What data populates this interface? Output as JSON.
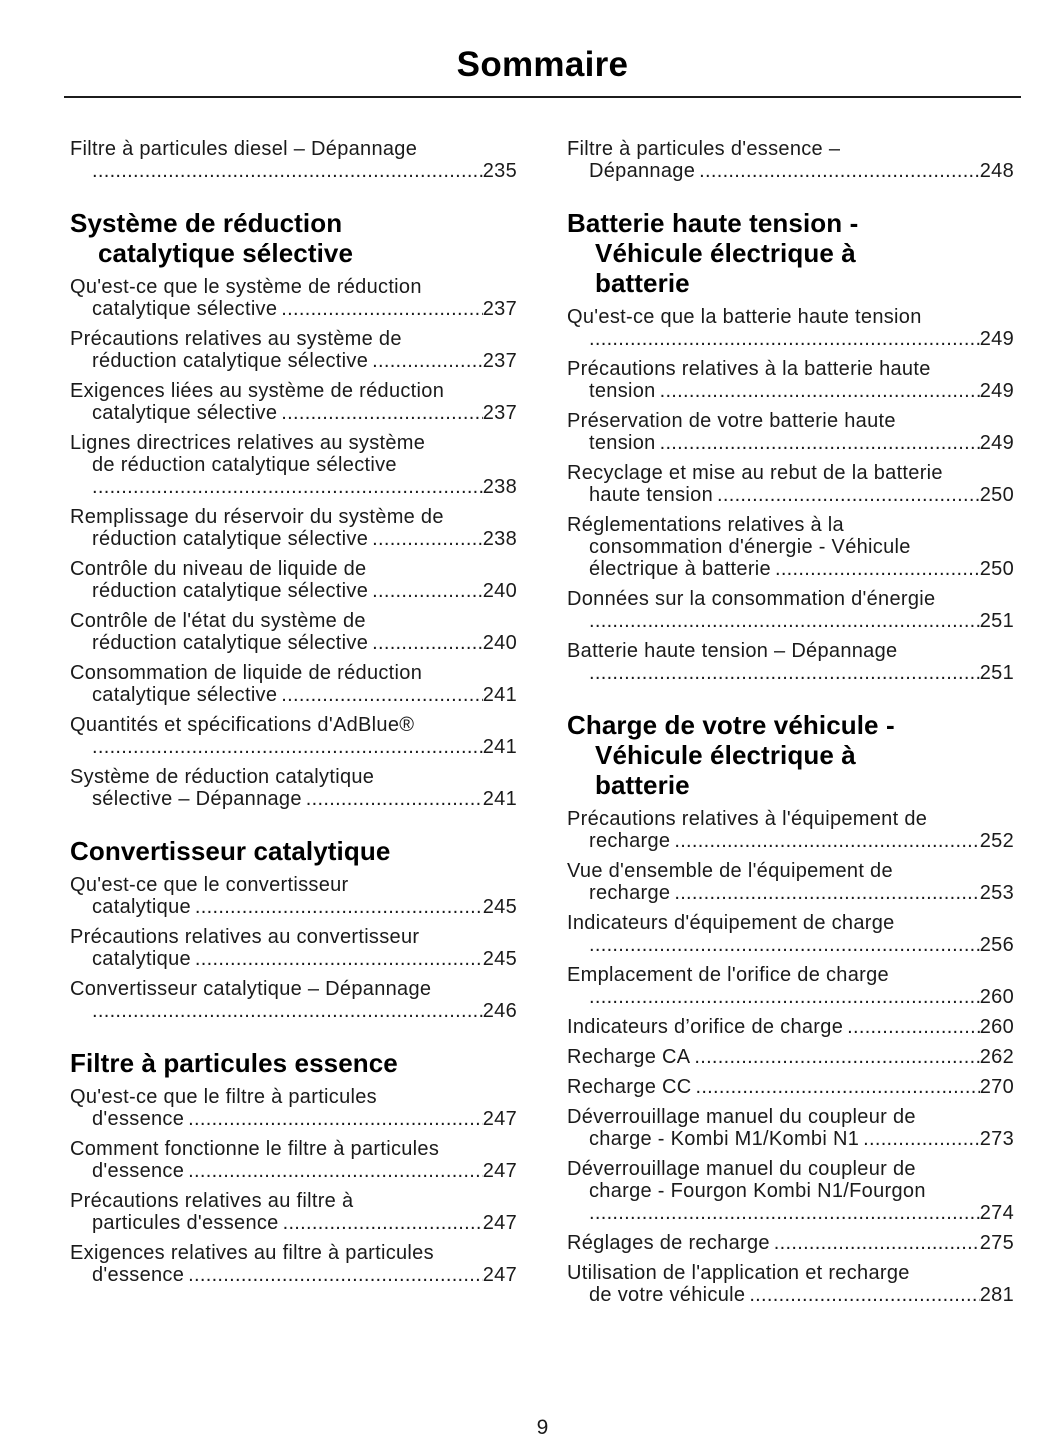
{
  "title": "Sommaire",
  "footer": {
    "page_number": "9"
  },
  "colors": {
    "ink": "#1a1a1a",
    "heading_ink": "#000000"
  },
  "columns": {
    "left": [
      {
        "heading": null,
        "entries": [
          {
            "lines": [
              "Filtre à particules diesel – Dépannage",
              ""
            ],
            "page": "235"
          }
        ]
      },
      {
        "heading": {
          "lines": [
            "Système de réduction",
            "catalytique sélective"
          ]
        },
        "entries": [
          {
            "lines": [
              "Qu'est-ce que le système de réduction",
              "catalytique sélective"
            ],
            "page": "237"
          },
          {
            "lines": [
              "Précautions relatives au système de",
              "réduction catalytique sélective"
            ],
            "page": "237"
          },
          {
            "lines": [
              "Exigences liées au système de réduction",
              "catalytique sélective"
            ],
            "page": "237"
          },
          {
            "lines": [
              "Lignes directrices relatives au système",
              "de réduction catalytique sélective",
              ""
            ],
            "page": "238"
          },
          {
            "lines": [
              "Remplissage du réservoir du système de",
              "réduction catalytique sélective"
            ],
            "page": "238"
          },
          {
            "lines": [
              "Contrôle du niveau de liquide de",
              "réduction catalytique sélective"
            ],
            "page": "240"
          },
          {
            "lines": [
              "Contrôle de l'état du système de",
              "réduction catalytique sélective"
            ],
            "page": "240"
          },
          {
            "lines": [
              "Consommation de liquide de réduction",
              "catalytique sélective"
            ],
            "page": "241"
          },
          {
            "lines": [
              "Quantités et spécifications d'AdBlue®",
              ""
            ],
            "page": "241"
          },
          {
            "lines": [
              "Système de réduction catalytique",
              "sélective – Dépannage"
            ],
            "page": "241"
          }
        ]
      },
      {
        "heading": {
          "lines": [
            "Convertisseur catalytique"
          ]
        },
        "entries": [
          {
            "lines": [
              "Qu'est-ce que le convertisseur",
              "catalytique"
            ],
            "page": "245"
          },
          {
            "lines": [
              "Précautions relatives au convertisseur",
              "catalytique"
            ],
            "page": "245"
          },
          {
            "lines": [
              "Convertisseur catalytique – Dépannage",
              ""
            ],
            "page": "246"
          }
        ]
      },
      {
        "heading": {
          "lines": [
            "Filtre à particules essence"
          ]
        },
        "entries": [
          {
            "lines": [
              "Qu'est-ce que le filtre à particules",
              "d'essence"
            ],
            "page": "247"
          },
          {
            "lines": [
              "Comment fonctionne le filtre à particules",
              "d'essence"
            ],
            "page": "247"
          },
          {
            "lines": [
              "Précautions relatives au filtre à",
              "particules d'essence"
            ],
            "page": "247"
          },
          {
            "lines": [
              "Exigences relatives au filtre à particules",
              "d'essence"
            ],
            "page": "247"
          }
        ]
      }
    ],
    "right": [
      {
        "heading": null,
        "entries": [
          {
            "lines": [
              "Filtre à particules d'essence –",
              "Dépannage"
            ],
            "page": "248"
          }
        ]
      },
      {
        "heading": {
          "lines": [
            "Batterie haute tension -",
            "Véhicule électrique à",
            "batterie"
          ]
        },
        "entries": [
          {
            "lines": [
              "Qu'est-ce que la batterie haute tension",
              ""
            ],
            "page": "249"
          },
          {
            "lines": [
              "Précautions relatives à la batterie haute",
              "tension"
            ],
            "page": "249"
          },
          {
            "lines": [
              "Préservation de votre batterie haute",
              "tension"
            ],
            "page": "249"
          },
          {
            "lines": [
              "Recyclage et mise au rebut de la batterie",
              "haute tension"
            ],
            "page": "250"
          },
          {
            "lines": [
              "Réglementations relatives à la",
              "consommation d'énergie - Véhicule",
              "électrique à batterie"
            ],
            "page": "250"
          },
          {
            "lines": [
              "Données sur la consommation d'énergie",
              ""
            ],
            "page": "251"
          },
          {
            "lines": [
              "Batterie haute tension – Dépannage",
              ""
            ],
            "page": "251"
          }
        ]
      },
      {
        "heading": {
          "lines": [
            "Charge de votre véhicule -",
            "Véhicule électrique à",
            "batterie"
          ]
        },
        "entries": [
          {
            "lines": [
              "Précautions relatives à l'équipement de",
              "recharge"
            ],
            "page": "252"
          },
          {
            "lines": [
              "Vue d'ensemble de l'équipement de",
              "recharge"
            ],
            "page": "253"
          },
          {
            "lines": [
              "Indicateurs d'équipement de charge",
              ""
            ],
            "page": "256"
          },
          {
            "lines": [
              "Emplacement de l'orifice de charge",
              ""
            ],
            "page": "260"
          },
          {
            "lines": [
              "Indicateurs d’orifice de charge"
            ],
            "page": "260"
          },
          {
            "lines": [
              "Recharge CA"
            ],
            "page": "262"
          },
          {
            "lines": [
              "Recharge CC"
            ],
            "page": "270"
          },
          {
            "lines": [
              "Déverrouillage manuel du coupleur de",
              "charge - Kombi M1/Kombi N1"
            ],
            "page": "273"
          },
          {
            "lines": [
              "Déverrouillage manuel du coupleur de",
              "charge - Fourgon Kombi N1/Fourgon",
              ""
            ],
            "page": "274"
          },
          {
            "lines": [
              "Réglages de recharge"
            ],
            "page": "275"
          },
          {
            "lines": [
              "Utilisation de l'application et recharge",
              "de votre véhicule"
            ],
            "page": "281"
          }
        ]
      }
    ]
  }
}
